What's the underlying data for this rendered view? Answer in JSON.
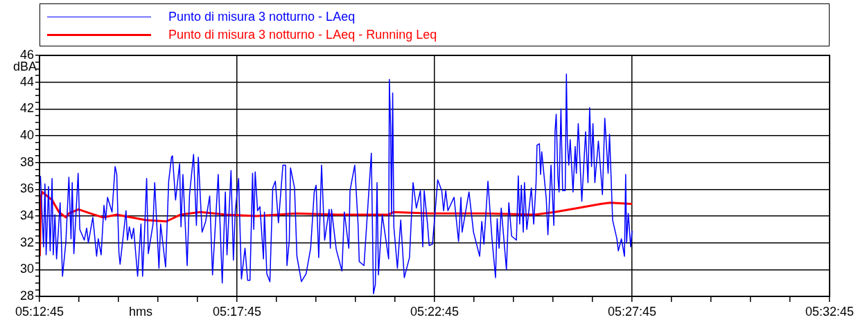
{
  "chart_data": {
    "type": "line",
    "xlabel": "hms",
    "ylabel": "dBA",
    "legend": "top",
    "grid": true,
    "marker": "none",
    "line_style": "solid",
    "xlim": [
      5.2125,
      5.54583
    ],
    "ylim": [
      28,
      46
    ],
    "xticks": [
      {
        "value": 5.2125,
        "label": "05:12:45"
      },
      {
        "value": 5.22917,
        "label": null
      },
      {
        "value": 5.24583,
        "label": null
      },
      {
        "value": 5.2625,
        "label": null
      },
      {
        "value": 5.27917,
        "label": null
      },
      {
        "value": 5.29583,
        "label": "05:17:45"
      },
      {
        "value": 5.3125,
        "label": null
      },
      {
        "value": 5.32917,
        "label": null
      },
      {
        "value": 5.34583,
        "label": null
      },
      {
        "value": 5.3625,
        "label": null
      },
      {
        "value": 5.37917,
        "label": "05:22:45"
      },
      {
        "value": 5.39583,
        "label": null
      },
      {
        "value": 5.4125,
        "label": null
      },
      {
        "value": 5.42917,
        "label": null
      },
      {
        "value": 5.44583,
        "label": null
      },
      {
        "value": 5.4625,
        "label": "05:27:45"
      },
      {
        "value": 5.47917,
        "label": null
      },
      {
        "value": 5.49583,
        "label": null
      },
      {
        "value": 5.5125,
        "label": null
      },
      {
        "value": 5.52917,
        "label": null
      },
      {
        "value": 5.54583,
        "label": "05:32:45"
      }
    ],
    "yticks": [
      28,
      {
        "value": 28.5,
        "label": null
      },
      {
        "value": 29,
        "label": null
      },
      {
        "value": 29.5,
        "label": null
      },
      30,
      {
        "value": 30.5,
        "label": null
      },
      {
        "value": 31,
        "label": null
      },
      {
        "value": 31.5,
        "label": null
      },
      32,
      {
        "value": 32.5,
        "label": null
      },
      {
        "value": 33,
        "label": null
      },
      {
        "value": 33.5,
        "label": null
      },
      34,
      {
        "value": 34.5,
        "label": null
      },
      {
        "value": 35,
        "label": null
      },
      {
        "value": 35.5,
        "label": null
      },
      36,
      {
        "value": 36.5,
        "label": null
      },
      {
        "value": 37,
        "label": null
      },
      {
        "value": 37.5,
        "label": null
      },
      38,
      {
        "value": 38.5,
        "label": null
      },
      {
        "value": 39,
        "label": null
      },
      {
        "value": 39.5,
        "label": null
      },
      40,
      {
        "value": 40.5,
        "label": null
      },
      {
        "value": 41,
        "label": null
      },
      {
        "value": 41.5,
        "label": null
      },
      42,
      {
        "value": 42.5,
        "label": null
      },
      {
        "value": 43,
        "label": null
      },
      {
        "value": 43.5,
        "label": null
      },
      44,
      {
        "value": 44.5,
        "label": null
      },
      {
        "value": 45,
        "label": null
      },
      {
        "value": 45.5,
        "label": null
      },
      46
    ],
    "series": [
      {
        "name": "Punto di misura 3 notturno - LAeq",
        "color": "#0000ff",
        "x": [
          5.2129,
          5.2142,
          5.2148,
          5.2153,
          5.2163,
          5.217,
          5.2178,
          5.2183,
          5.219,
          5.2197,
          5.2212,
          5.2222,
          5.2236,
          5.2249,
          5.2258,
          5.2263,
          5.227,
          5.2288,
          5.2295,
          5.2314,
          5.2324,
          5.2331,
          5.235,
          5.2366,
          5.2373,
          5.2385,
          5.2397,
          5.2404,
          5.2412,
          5.2431,
          5.2444,
          5.2451,
          5.246,
          5.2465,
          5.249,
          5.2496,
          5.2504,
          5.2514,
          5.2522,
          5.2539,
          5.2553,
          5.256,
          5.2567,
          5.2577,
          5.2584,
          5.2604,
          5.2611,
          5.2629,
          5.2636,
          5.2657,
          5.267,
          5.2682,
          5.2686,
          5.2699,
          5.2716,
          5.2722,
          5.273,
          5.2748,
          5.2758,
          5.2775,
          5.2787,
          5.2795,
          5.2811,
          5.2826,
          5.2843,
          5.2855,
          5.2879,
          5.2896,
          5.2909,
          5.2916,
          5.2933,
          5.2943,
          5.2951,
          5.2965,
          5.2977,
          5.2992,
          5.3003,
          5.3013,
          5.3024,
          5.3029,
          5.3035,
          5.3045,
          5.3055,
          5.307,
          5.3074,
          5.3084,
          5.3097,
          5.3109,
          5.312,
          5.3133,
          5.3152,
          5.3163,
          5.3169,
          5.3179,
          5.3184,
          5.3201,
          5.3211,
          5.323,
          5.325,
          5.3269,
          5.3284,
          5.3292,
          5.3303,
          5.3315,
          5.3328,
          5.3347,
          5.3352,
          5.3357,
          5.3377,
          5.3401,
          5.3411,
          5.343,
          5.3435,
          5.3455,
          5.3469,
          5.3474,
          5.3494,
          5.3511,
          5.3525,
          5.3534,
          5.3542,
          5.3549,
          5.3555,
          5.3571,
          5.3598,
          5.3601,
          5.3606,
          5.361,
          5.3615,
          5.362,
          5.3635,
          5.3649,
          5.3664,
          5.3686,
          5.3701,
          5.3715,
          5.3732,
          5.3742,
          5.3748,
          5.3762,
          5.3769,
          5.3783,
          5.3805,
          5.3822,
          5.383,
          5.3839,
          5.3848,
          5.3874,
          5.3893,
          5.3903,
          5.3908,
          5.3937,
          5.3956,
          5.3982,
          5.3991,
          5.4,
          5.4017,
          5.4034,
          5.4049,
          5.4056,
          5.4064,
          5.4073,
          5.4095,
          5.4105,
          5.4117,
          5.4137,
          5.4145,
          5.4151,
          5.4158,
          5.4166,
          5.4171,
          5.4181,
          5.42,
          5.421,
          5.422,
          5.4224,
          5.4234,
          5.4239,
          5.4244,
          5.4263,
          5.427,
          5.4283,
          5.4295,
          5.43,
          5.4305,
          5.4312,
          5.4317,
          5.4325,
          5.4332,
          5.4343,
          5.4348,
          5.4352,
          5.4358,
          5.4364,
          5.4376,
          5.4385,
          5.439,
          5.4398,
          5.4413,
          5.4429,
          5.4439,
          5.4446,
          5.4454,
          5.446,
          5.4468,
          5.4483,
          5.45,
          5.451,
          5.4524,
          5.453,
          5.4543,
          5.4561,
          5.4567,
          5.458,
          5.4593,
          5.4598,
          5.4602,
          5.4609,
          5.4619,
          5.4625
        ],
        "values": [
          37.0,
          31.7,
          36.4,
          31.1,
          36.2,
          31.4,
          36.8,
          31.1,
          34.1,
          30.8,
          35.0,
          29.5,
          32.0,
          36.9,
          32.3,
          36.5,
          31.2,
          37.2,
          33.0,
          32.2,
          33.1,
          32.0,
          33.9,
          31.0,
          32.3,
          31.1,
          34.8,
          33.7,
          35.4,
          34.3,
          37.7,
          37.1,
          31.3,
          30.4,
          34.4,
          32.2,
          33.2,
          32.3,
          33.1,
          29.5,
          33.4,
          29.5,
          32.3,
          36.8,
          31.2,
          33.4,
          36.5,
          30.1,
          33.4,
          30.2,
          36.6,
          38.4,
          38.5,
          35.2,
          37.9,
          33.2,
          37.1,
          30.3,
          35.6,
          38.6,
          33.3,
          38.4,
          32.8,
          33.6,
          35.5,
          29.6,
          37.1,
          29.0,
          35.8,
          31.1,
          37.4,
          30.7,
          34.4,
          36.8,
          29.3,
          31.6,
          29.2,
          29.2,
          37.2,
          33.0,
          37.3,
          34.4,
          34.7,
          30.8,
          34.3,
          29.7,
          29.1,
          36.1,
          36.6,
          33.5,
          37.8,
          37.8,
          30.3,
          32.2,
          37.6,
          36.1,
          31.0,
          29.1,
          29.7,
          31.6,
          35.8,
          36.3,
          30.9,
          37.8,
          32.2,
          34.5,
          31.6,
          34.5,
          31.5,
          29.9,
          34.3,
          31.6,
          35.9,
          37.8,
          33.4,
          30.6,
          30.3,
          34.9,
          38.7,
          28.2,
          28.9,
          36.5,
          29.6,
          34.1,
          30.8,
          44.2,
          40.8,
          34.1,
          43.2,
          33.2,
          30.1,
          33.7,
          29.4,
          30.9,
          36.5,
          34.6,
          35.9,
          31.7,
          35.9,
          33.4,
          31.8,
          31.9,
          36.7,
          35.9,
          34.4,
          35.9,
          34.4,
          35.4,
          32.1,
          35.4,
          32.8,
          35.8,
          32.8,
          31.0,
          33.6,
          31.9,
          36.6,
          32.3,
          29.4,
          33.8,
          31.6,
          34.6,
          30.0,
          35.0,
          32.5,
          32.2,
          37.0,
          33.4,
          36.3,
          32.8,
          36.5,
          33.0,
          36.1,
          33.4,
          36.5,
          39.3,
          39.4,
          37.1,
          38.8,
          35.3,
          32.6,
          37.8,
          33.3,
          40.3,
          41.6,
          36.9,
          35.8,
          42.0,
          35.9,
          35.9,
          44.6,
          39.6,
          37.8,
          39.7,
          35.8,
          39.2,
          37.2,
          40.9,
          35.1,
          40.3,
          36.5,
          42.1,
          37.7,
          40.9,
          36.5,
          39.6,
          35.6,
          41.3,
          37.2,
          40.1,
          33.7,
          32.3,
          31.4,
          32.3,
          31.0,
          37.1,
          32.0,
          34.2,
          31.7,
          32.9
        ]
      },
      {
        "name": "Punto di misura 3 notturno - LAeq - Running Leq",
        "color": "#ff0000",
        "x": [
          5.2126,
          5.2131,
          5.2136,
          5.2178,
          5.2207,
          5.2236,
          5.2249,
          5.229,
          5.2339,
          5.2392,
          5.2451,
          5.2514,
          5.2572,
          5.266,
          5.2719,
          5.2804,
          5.2914,
          5.304,
          5.3206,
          5.3381,
          5.3597,
          5.362,
          5.3771,
          5.4005,
          5.4215,
          5.4298,
          5.4395,
          5.4493,
          5.4532,
          5.4625
        ],
        "values": [
          31.0,
          35.4,
          35.8,
          35.2,
          34.3,
          33.9,
          34.2,
          34.5,
          34.2,
          33.9,
          34.1,
          33.9,
          33.7,
          33.6,
          34.1,
          34.3,
          34.1,
          34.0,
          34.2,
          34.1,
          34.1,
          34.3,
          34.2,
          34.2,
          34.1,
          34.3,
          34.6,
          34.9,
          35.0,
          34.9
        ]
      }
    ]
  }
}
